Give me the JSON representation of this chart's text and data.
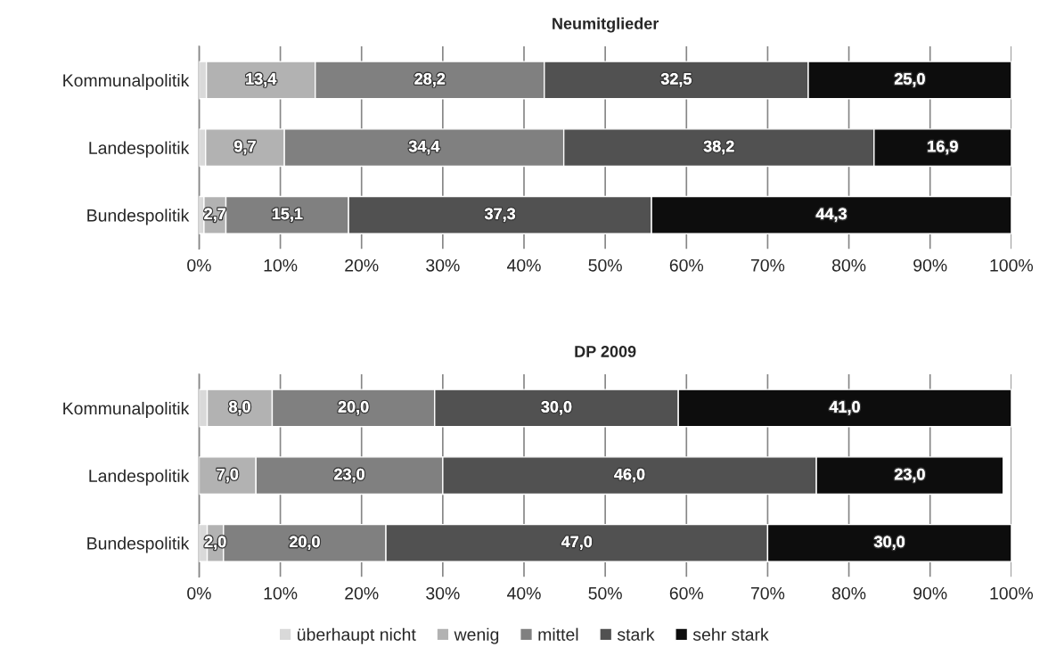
{
  "chart_data": [
    {
      "type": "bar",
      "title": "Neumitglieder",
      "orientation": "horizontal",
      "stacked": true,
      "categories": [
        "Kommunalpolitik",
        "Landespolitik",
        "Bundespolitik"
      ],
      "series": [
        {
          "name": "überhaupt nicht",
          "color": "#d9d9d9",
          "values": [
            0.9,
            0.8,
            0.6
          ],
          "value_labels": [
            null,
            null,
            null
          ]
        },
        {
          "name": "wenig",
          "color": "#b2b2b2",
          "values": [
            13.4,
            9.7,
            2.7
          ],
          "value_labels": [
            "13,4",
            "9,7",
            "2,7"
          ]
        },
        {
          "name": "mittel",
          "color": "#808080",
          "values": [
            28.2,
            34.4,
            15.1
          ],
          "value_labels": [
            "28,2",
            "34,4",
            "15,1"
          ]
        },
        {
          "name": "stark",
          "color": "#515151",
          "values": [
            32.5,
            38.2,
            37.3
          ],
          "value_labels": [
            "32,5",
            "38,2",
            "37,3"
          ]
        },
        {
          "name": "sehr stark",
          "color": "#0d0d0d",
          "values": [
            25.0,
            16.9,
            44.3
          ],
          "value_labels": [
            "25,0",
            "16,9",
            "44,3"
          ]
        }
      ],
      "xlim": [
        0,
        100
      ],
      "xticks": [
        {
          "value": 0,
          "label": "0%"
        },
        {
          "value": 10,
          "label": "10%"
        },
        {
          "value": 20,
          "label": "20%"
        },
        {
          "value": 30,
          "label": "30%"
        },
        {
          "value": 40,
          "label": "40%"
        },
        {
          "value": 50,
          "label": "50%"
        },
        {
          "value": 60,
          "label": "60%"
        },
        {
          "value": 70,
          "label": "70%"
        },
        {
          "value": 80,
          "label": "80%"
        },
        {
          "value": 90,
          "label": "90%"
        },
        {
          "value": 100,
          "label": "100%"
        }
      ],
      "grid": "x",
      "legend": "bottom"
    },
    {
      "type": "bar",
      "title": "DP 2009",
      "orientation": "horizontal",
      "stacked": true,
      "categories": [
        "Kommunalpolitik",
        "Landespolitik",
        "Bundespolitik"
      ],
      "series": [
        {
          "color": "#d9d9d9",
          "values": [
            1.0,
            null,
            1.0
          ],
          "value_labels": [
            null,
            null,
            null
          ]
        },
        {
          "color": "#b2b2b2",
          "values": [
            8.0,
            7.0,
            2.0
          ],
          "value_labels": [
            "8,0",
            "7,0",
            "2,0"
          ]
        },
        {
          "color": "#808080",
          "values": [
            20.0,
            23.0,
            20.0
          ],
          "value_labels": [
            "20,0",
            "23,0",
            "20,0"
          ]
        },
        {
          "color": "#515151",
          "values": [
            30.0,
            46.0,
            47.0
          ],
          "value_labels": [
            "30,0",
            "46,0",
            "47,0"
          ]
        },
        {
          "color": "#0d0d0d",
          "values": [
            41.0,
            23.0,
            30.0
          ],
          "value_labels": [
            "41,0",
            "23,0",
            "30,0"
          ]
        }
      ],
      "xlim": [
        0,
        100
      ],
      "xticks": [
        {
          "value": 0,
          "label": "0%"
        },
        {
          "value": 10,
          "label": "10%"
        },
        {
          "value": 20,
          "label": "20%"
        },
        {
          "value": 30,
          "label": "30%"
        },
        {
          "value": 40,
          "label": "40%"
        },
        {
          "value": 50,
          "label": "50%"
        },
        {
          "value": 60,
          "label": "60%"
        },
        {
          "value": 70,
          "label": "70%"
        },
        {
          "value": 80,
          "label": "80%"
        },
        {
          "value": 90,
          "label": "90%"
        },
        {
          "value": 100,
          "label": "100%"
        }
      ],
      "grid": "x"
    }
  ]
}
